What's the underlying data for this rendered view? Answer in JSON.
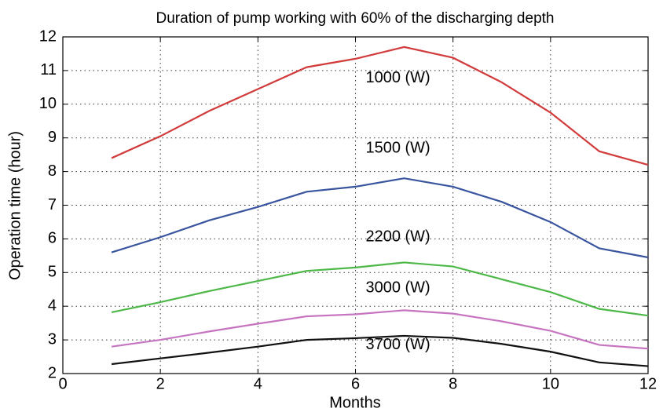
{
  "chart_data": {
    "type": "line",
    "title": "Duration of pump working with 60% of the discharging depth",
    "xlabel": "Months",
    "ylabel": "Operation time (hour)",
    "x": [
      1,
      2,
      3,
      4,
      5,
      6,
      7,
      8,
      9,
      10,
      11,
      12
    ],
    "series": [
      {
        "name": "1000 (W)",
        "color": "#d23b3b",
        "values": [
          8.4,
          9.05,
          9.8,
          10.45,
          11.1,
          11.35,
          11.7,
          11.38,
          10.65,
          9.75,
          8.6,
          8.2
        ]
      },
      {
        "name": "1500 (W)",
        "color": "#3a559f",
        "values": [
          5.6,
          6.05,
          6.55,
          6.95,
          7.4,
          7.55,
          7.8,
          7.55,
          7.1,
          6.5,
          5.72,
          5.45
        ]
      },
      {
        "name": "2200 (W)",
        "color": "#4db848",
        "values": [
          3.82,
          4.12,
          4.45,
          4.75,
          5.05,
          5.15,
          5.3,
          5.18,
          4.8,
          4.42,
          3.92,
          3.72
        ]
      },
      {
        "name": "3000 (W)",
        "color": "#c774c0",
        "values": [
          2.8,
          3.0,
          3.25,
          3.48,
          3.7,
          3.76,
          3.88,
          3.78,
          3.55,
          3.27,
          2.85,
          2.74
        ]
      },
      {
        "name": "3700 (W)",
        "color": "#111111",
        "values": [
          2.28,
          2.45,
          2.62,
          2.8,
          3.0,
          3.05,
          3.12,
          3.06,
          2.88,
          2.65,
          2.33,
          2.22
        ]
      }
    ],
    "xlim": [
      0,
      12
    ],
    "xticks": [
      0,
      2,
      4,
      6,
      8,
      10,
      12
    ],
    "ylim": [
      2,
      12
    ],
    "yticks": [
      2,
      3,
      4,
      5,
      6,
      7,
      8,
      9,
      10,
      11,
      12
    ],
    "grid": true
  }
}
